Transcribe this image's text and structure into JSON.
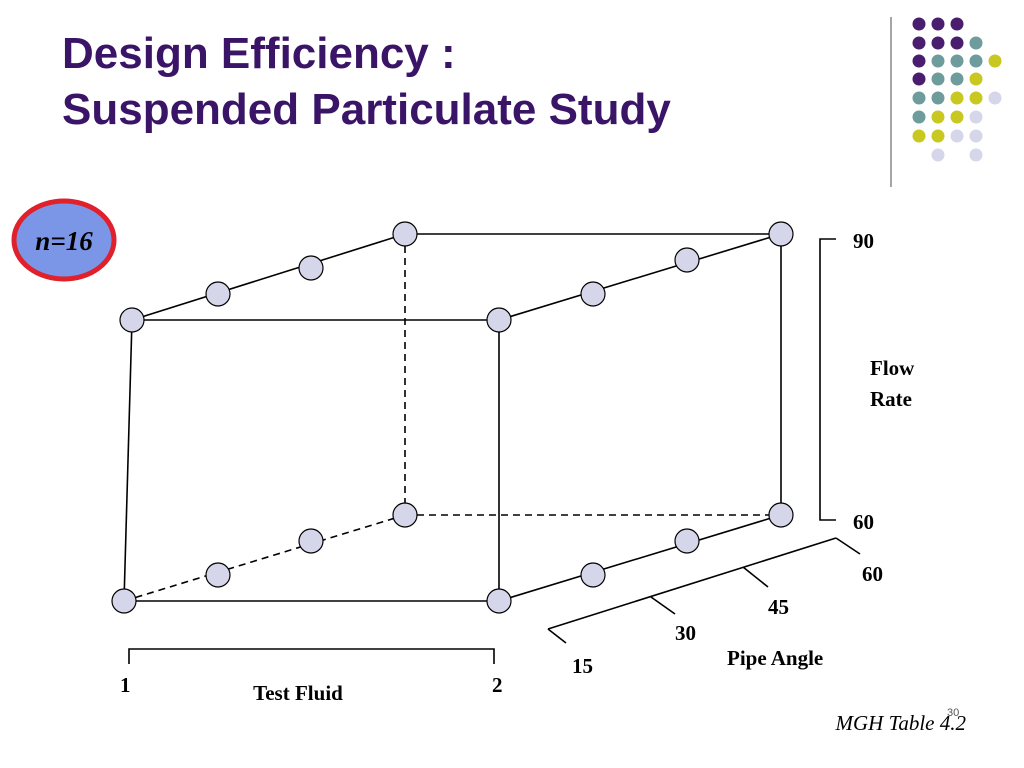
{
  "slide": {
    "title_line1": "Design Efficiency :",
    "title_line2": "Suspended Particulate Study",
    "page_number": "30",
    "footnote": "MGH Table 4.2"
  },
  "badge": {
    "text": "n=16"
  },
  "axes": {
    "flow_rate": {
      "label_line1": "Flow",
      "label_line2": "Rate",
      "high": "90",
      "low": "60"
    },
    "pipe_angle": {
      "label": "Pipe Angle",
      "ticks": [
        "15",
        "30",
        "45",
        "60"
      ]
    },
    "test_fluid": {
      "label": "Test Fluid",
      "left": "1",
      "right": "2"
    }
  },
  "colors": {
    "title": "#3a1466",
    "badge_fill": "#7b96e6",
    "badge_ring": "#e0202a",
    "node_fill": "#d6d6ea",
    "dot_purple": "#4b1d6e",
    "dot_teal": "#6e9c9c",
    "dot_yellow": "#c8c820",
    "dot_lavender": "#d6d6ea"
  }
}
